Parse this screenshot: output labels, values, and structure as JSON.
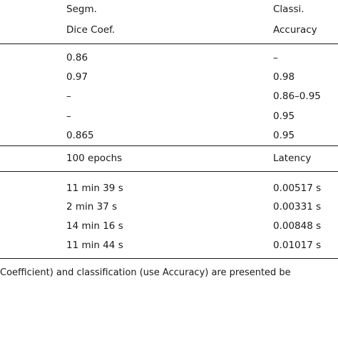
{
  "table": {
    "headers": {
      "col1_line1": "Segm.",
      "col1_line2": "Dice Coef.",
      "col2_line1": "Classi.",
      "col2_line2": "Accuracy"
    },
    "rows_top": [
      {
        "dice": "0.86",
        "accuracy": "–"
      },
      {
        "dice": "0.97",
        "accuracy": "0.98"
      },
      {
        "dice": "–",
        "accuracy": "0.86–0.95"
      },
      {
        "dice": "–",
        "accuracy": "0.95"
      },
      {
        "dice": "0.865",
        "accuracy": "0.95"
      }
    ],
    "subheaders": {
      "col1": "100 epochs",
      "col2": "Latency"
    },
    "rows_bottom": [
      {
        "time": "11 min 39 s",
        "latency": "0.00517 s"
      },
      {
        "time": "2 min 37 s",
        "latency": "0.00331 s"
      },
      {
        "time": "14 min 16 s",
        "latency": "0.00848 s"
      },
      {
        "time": "11 min 44 s",
        "latency": "0.01017 s"
      }
    ]
  },
  "caption": "Coefficient) and classification (use Accuracy) are presented be"
}
